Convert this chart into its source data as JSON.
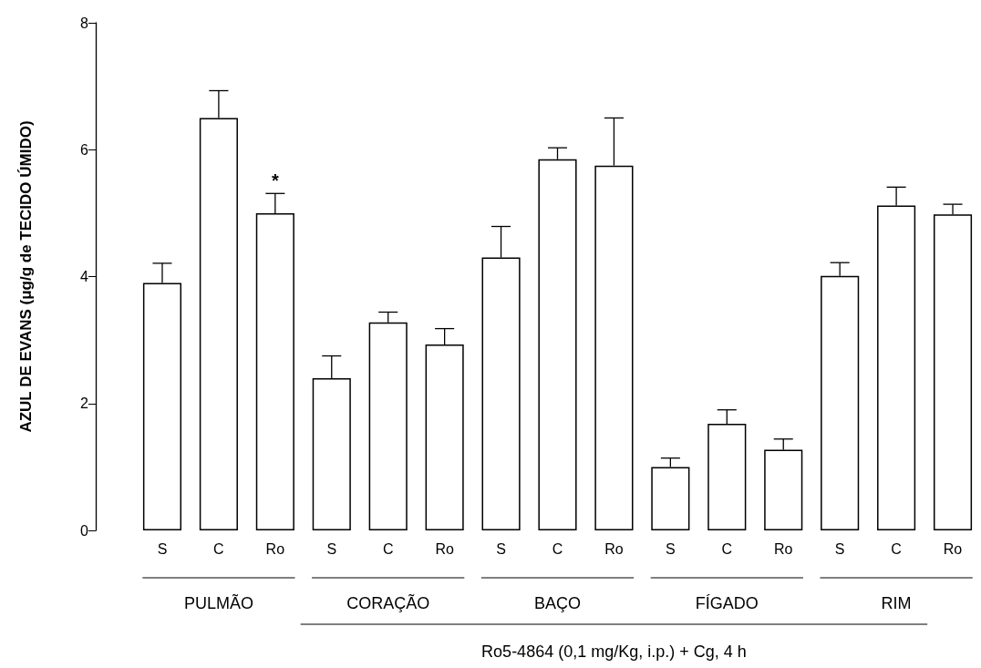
{
  "chart_data": {
    "type": "bar",
    "ylabel": "AZUL DE EVANS (μg/g de TECIDO ÚMIDO)",
    "categories": [
      "S",
      "C",
      "Ro",
      "S",
      "C",
      "Ro",
      "S",
      "C",
      "Ro",
      "S",
      "C",
      "Ro",
      "S",
      "C",
      "Ro"
    ],
    "values": [
      3.9,
      6.5,
      5.0,
      2.4,
      3.28,
      2.93,
      4.3,
      5.85,
      5.75,
      1.0,
      1.68,
      1.27,
      4.01,
      5.12,
      4.98
    ],
    "errors": [
      0.31,
      0.43,
      0.31,
      0.35,
      0.16,
      0.25,
      0.49,
      0.18,
      0.75,
      0.14,
      0.22,
      0.17,
      0.21,
      0.29,
      0.16
    ],
    "value_labels": [
      null,
      null,
      "*",
      null,
      null,
      null,
      null,
      null,
      null,
      null,
      null,
      null,
      null,
      null,
      null
    ],
    "color": "#ffffff",
    "annotations": [
      "PULMÃO",
      "CORAÇÃO",
      "BAÇO",
      "FÍGADO",
      "RIM",
      "Ro5-4864 (0,1 mg/Kg, i.p.) + Cg, 4 h"
    ],
    "ylim": [
      0,
      8
    ],
    "yticks": [
      0,
      2,
      4,
      6,
      8
    ],
    "grid": false
  }
}
